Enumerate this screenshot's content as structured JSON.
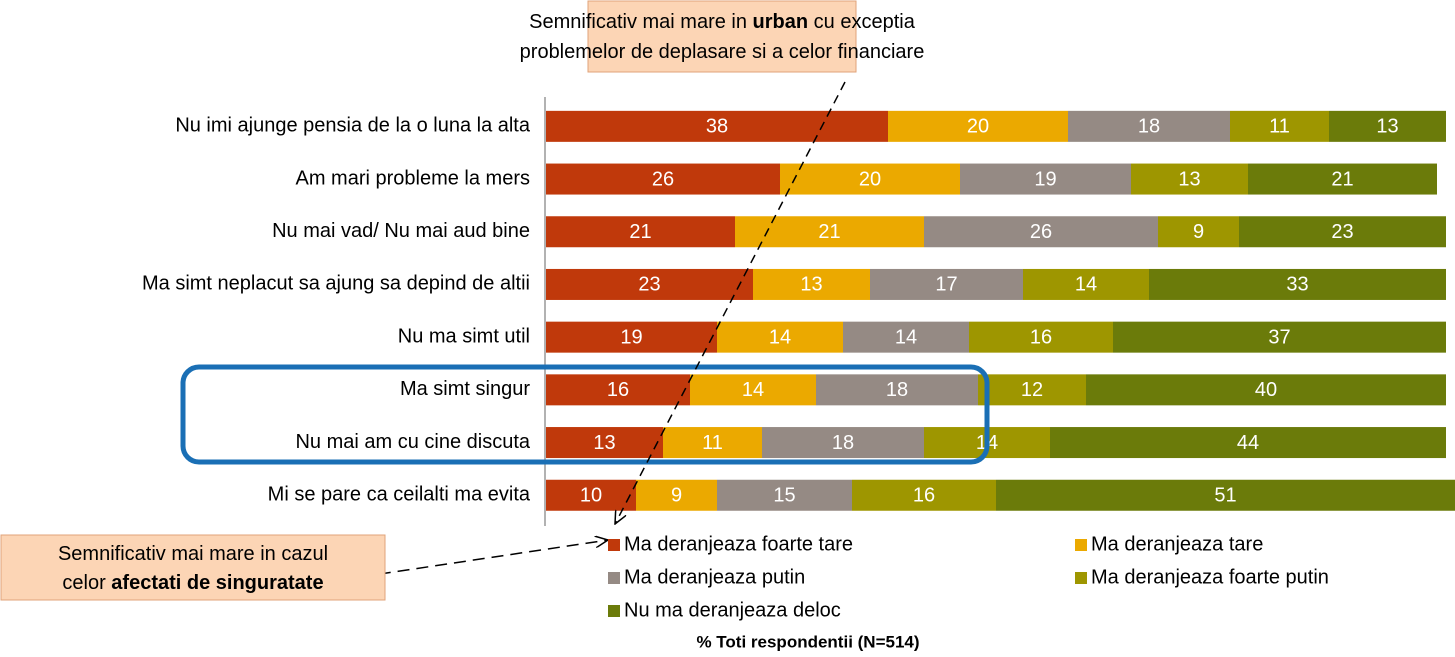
{
  "chart_data": {
    "type": "stacked_bar_horizontal",
    "categories": [
      "Nu imi ajunge pensia de la o luna la alta",
      "Am mari probleme la mers",
      "Nu mai vad/ Nu mai aud bine",
      "Ma simt neplacut sa ajung sa depind de altii",
      "Nu ma simt util",
      "Ma simt singur",
      "Nu mai am cu cine discuta",
      "Mi se pare ca ceilalti ma evita"
    ],
    "series": [
      {
        "name": "Ma deranjeaza foarte tare",
        "color": "#c0390b",
        "values": [
          38,
          26,
          21,
          23,
          19,
          16,
          13,
          10
        ]
      },
      {
        "name": "Ma deranjeaza tare",
        "color": "#eba900",
        "values": [
          20,
          20,
          21,
          13,
          14,
          14,
          11,
          9
        ]
      },
      {
        "name": "Ma deranjeaza putin",
        "color": "#958a84",
        "values": [
          18,
          19,
          26,
          17,
          14,
          18,
          18,
          15
        ]
      },
      {
        "name": "Ma deranjeaza foarte putin",
        "color": "#9e9600",
        "values": [
          11,
          13,
          9,
          14,
          16,
          12,
          14,
          16
        ]
      },
      {
        "name": "Nu ma deranjeaza deloc",
        "color": "#6b7b0a",
        "values": [
          13,
          21,
          23,
          33,
          37,
          40,
          44,
          51
        ]
      }
    ],
    "legend": "bottom",
    "note": "% Toti respondentii (N=514)",
    "annotations": [
      {
        "lines": [
          [
            "Semnificativ mai mare in ",
            "urban",
            " cu exceptia"
          ],
          [
            "problemelor de deplasare si a celor financiare"
          ]
        ]
      },
      {
        "lines": [
          [
            "Semnificativ mai mare in cazul"
          ],
          [
            "celor ",
            "afectati de singuratate"
          ]
        ]
      }
    ]
  }
}
